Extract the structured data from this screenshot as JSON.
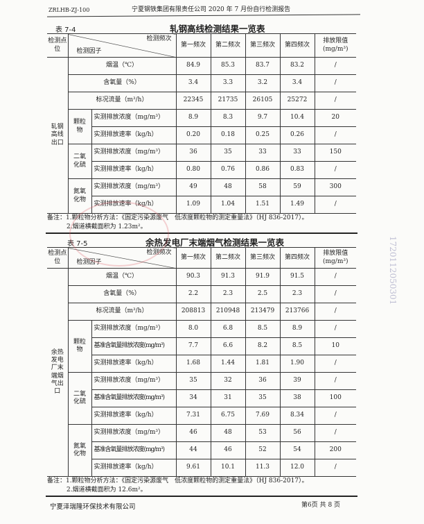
{
  "header": {
    "code": "ZRLHB-ZJ-100",
    "title": "宁夏钢铁集团有限责任公司 2020 年 7 月份自行检测报告"
  },
  "table1": {
    "label": "表 7-4",
    "title": "轧钢高线检测结果一览表",
    "head": {
      "location": "检测点位",
      "freq": "检测频次",
      "factor": "检测因子",
      "cols": [
        "第一频次",
        "第二频次",
        "第三频次",
        "第四频次"
      ],
      "limit": "排放限值(mg/m³)"
    },
    "location": "轧钢高线出口",
    "rows": [
      {
        "factor": "烟温（℃）",
        "values": [
          "84.9",
          "85.3",
          "83.7",
          "83.2"
        ],
        "limit": "/"
      },
      {
        "factor": "含氧量（%）",
        "values": [
          "3.4",
          "3.3",
          "3.2",
          "3.4"
        ],
        "limit": "/"
      },
      {
        "factor": "标况流量（m³/h）",
        "values": [
          "22345",
          "21735",
          "26105",
          "25272"
        ],
        "limit": "/"
      },
      {
        "group": "颗粒物",
        "factor": "实测排放浓度（mg/m³）",
        "values": [
          "8.9",
          "8.3",
          "9.7",
          "10.4"
        ],
        "limit": "20"
      },
      {
        "factor": "实测排放速率（kg/h）",
        "values": [
          "0.20",
          "0.18",
          "0.25",
          "0.26"
        ],
        "limit": "/"
      },
      {
        "group": "二氧化硫",
        "factor": "实测排放浓度（mg/m³）",
        "values": [
          "36",
          "35",
          "33",
          "33"
        ],
        "limit": "150"
      },
      {
        "factor": "实测排放速率（kg/h）",
        "values": [
          "0.80",
          "0.76",
          "0.86",
          "0.83"
        ],
        "limit": "/"
      },
      {
        "group": "氮氧化物",
        "factor": "实测排放浓度（mg/m³）",
        "values": [
          "49",
          "48",
          "58",
          "59"
        ],
        "limit": "300"
      },
      {
        "factor": "实测排放速率（kg/h）",
        "values": [
          "1.09",
          "1.04",
          "1.51",
          "1.49"
        ],
        "limit": "/"
      }
    ],
    "notes": [
      "备注：1.颗粒物分析方法：《固定污染源废气　低浓度颗粒物的测定重量法》（HJ 836-2017）。",
      "2.烟道横截面积为 1.23m²。"
    ]
  },
  "table2": {
    "label": "表 7-5",
    "title": "余热发电厂末端烟气检测结果一览表",
    "head": {
      "location": "检测点位",
      "freq": "检测频次",
      "factor": "检测因子",
      "cols": [
        "第一频次",
        "第二频次",
        "第三频次",
        "第四频次"
      ],
      "limit": "排放限值(mg/m³)"
    },
    "location": "余热发电厂末端烟气出口",
    "rows": [
      {
        "factor": "烟温（℃）",
        "values": [
          "90.3",
          "91.3",
          "91.9",
          "91.5"
        ],
        "limit": "/"
      },
      {
        "factor": "含氧量（%）",
        "values": [
          "2.2",
          "2.3",
          "2.5",
          "2.3"
        ],
        "limit": "/"
      },
      {
        "factor": "标况流量（m³/h）",
        "values": [
          "208813",
          "210948",
          "213479",
          "213766"
        ],
        "limit": "/"
      },
      {
        "group": "颗粒物",
        "factor": "实测排放浓度（mg/m³）",
        "values": [
          "8.0",
          "6.8",
          "8.5",
          "8.9"
        ],
        "limit": "/"
      },
      {
        "factor": "基准含氧量排放浓度(mg/m³)",
        "values": [
          "7.7",
          "6.6",
          "8.2",
          "8.5"
        ],
        "limit": "10"
      },
      {
        "factor": "实测排放速率（kg/h）",
        "values": [
          "1.68",
          "1.44",
          "1.81",
          "1.90"
        ],
        "limit": "/"
      },
      {
        "group": "二氧化硫",
        "factor": "实测排放浓度（mg/m³）",
        "values": [
          "35",
          "32",
          "36",
          "39"
        ],
        "limit": "/"
      },
      {
        "factor": "基准含氧量排放浓度(mg/m³)",
        "values": [
          "34",
          "31",
          "35",
          "38"
        ],
        "limit": "100"
      },
      {
        "factor": "实测排放速率（kg/h）",
        "values": [
          "7.31",
          "6.75",
          "7.69",
          "8.34"
        ],
        "limit": "/"
      },
      {
        "group": "氮氧化物",
        "factor": "实测排放浓度（mg/m³）",
        "values": [
          "46",
          "48",
          "53",
          "56"
        ],
        "limit": "/"
      },
      {
        "factor": "基准含氧量排放浓度(mg/m³)",
        "values": [
          "44",
          "46",
          "52",
          "54"
        ],
        "limit": "200"
      },
      {
        "factor": "实测排放速率（kg/h）",
        "values": [
          "9.61",
          "10.1",
          "11.3",
          "12.0"
        ],
        "limit": "/"
      }
    ],
    "notes": [
      "备注：1.颗粒物分析方法：《固定污染源废气　低浓度颗粒物的测定重量法》（HJ 836-2017）。",
      "2.烟道横截面积为 12.6m²。"
    ]
  },
  "stamp": {
    "number": "1720112050301"
  },
  "footer": {
    "company": "宁夏泽瑞隆环保技术有限公司",
    "page": "第6页 共 8 页"
  }
}
